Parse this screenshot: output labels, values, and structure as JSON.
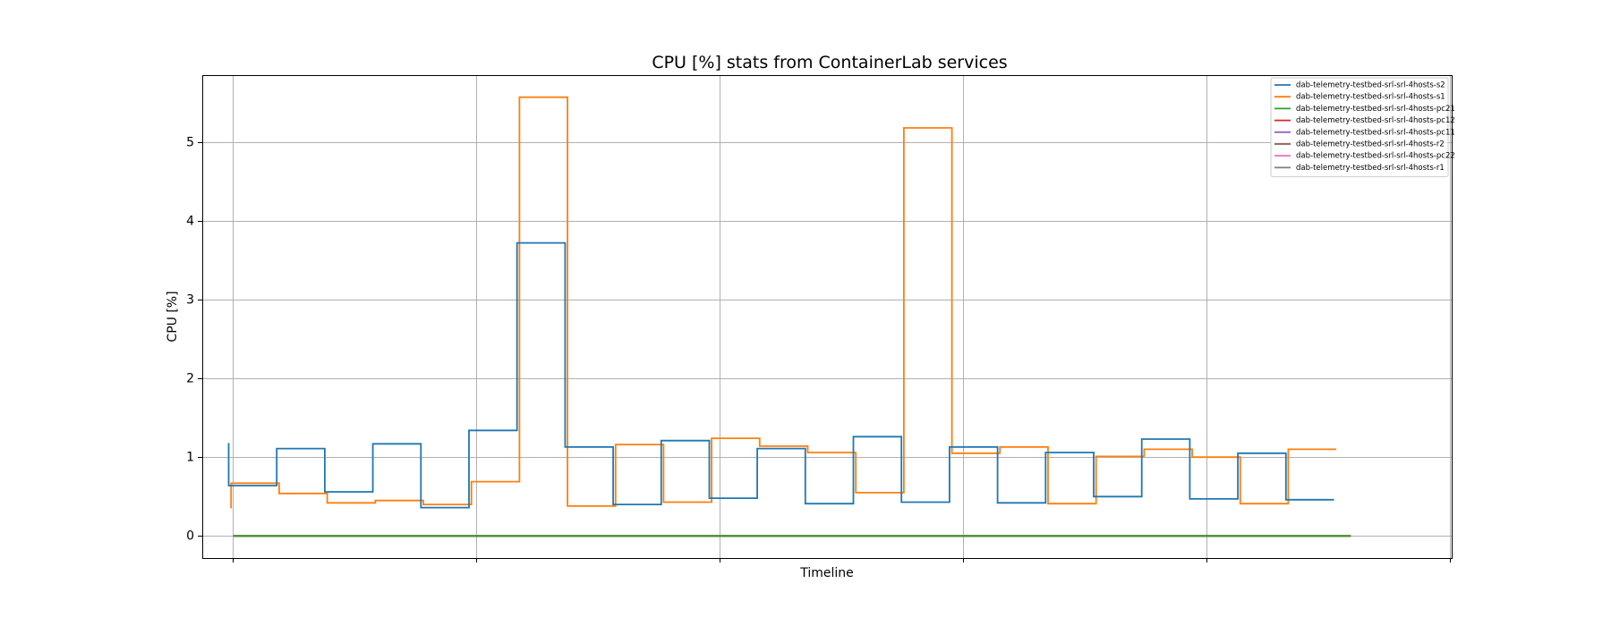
{
  "chart_data": {
    "type": "line",
    "drawstyle": "steps-post",
    "title": "CPU [%] stats from ContainerLab services",
    "xlabel": "Timeline",
    "ylabel": "CPU [%]",
    "ylim": [
      -0.28,
      5.85
    ],
    "yticks": [
      0,
      1,
      2,
      3,
      4,
      5
    ],
    "xlim": [
      0,
      26
    ],
    "x_ticklabels_shown": false,
    "grid": true,
    "legend_position": "upper-right",
    "series": [
      {
        "name": "dab-telemetry-testbed-srl-srl-4hosts-s2",
        "color": "#1f77b4",
        "points": [
          [
            0.55,
            1.18
          ],
          [
            0.55,
            0.64
          ],
          [
            1.55,
            1.11
          ],
          [
            2.55,
            0.56
          ],
          [
            3.55,
            1.17
          ],
          [
            4.55,
            0.36
          ],
          [
            5.55,
            1.34
          ],
          [
            6.55,
            3.72
          ],
          [
            7.55,
            1.13
          ],
          [
            8.55,
            0.4
          ],
          [
            9.55,
            1.21
          ],
          [
            10.55,
            0.48
          ],
          [
            11.55,
            1.11
          ],
          [
            12.55,
            0.41
          ],
          [
            13.55,
            1.26
          ],
          [
            14.55,
            0.43
          ],
          [
            15.55,
            1.13
          ],
          [
            16.55,
            0.42
          ],
          [
            17.55,
            1.06
          ],
          [
            18.55,
            0.5
          ],
          [
            19.55,
            1.23
          ],
          [
            20.55,
            0.47
          ],
          [
            21.55,
            1.05
          ],
          [
            22.55,
            0.46
          ],
          [
            23.55,
            0.46
          ]
        ]
      },
      {
        "name": "dab-telemetry-testbed-srl-srl-4hosts-s1",
        "color": "#ff7f0e",
        "points": [
          [
            0.6,
            0.35
          ],
          [
            0.6,
            0.67
          ],
          [
            1.6,
            0.54
          ],
          [
            2.6,
            0.42
          ],
          [
            3.6,
            0.45
          ],
          [
            4.6,
            0.4
          ],
          [
            5.6,
            0.69
          ],
          [
            6.6,
            5.57
          ],
          [
            7.6,
            0.38
          ],
          [
            8.6,
            1.16
          ],
          [
            9.6,
            0.43
          ],
          [
            10.6,
            1.24
          ],
          [
            11.6,
            1.14
          ],
          [
            12.6,
            1.06
          ],
          [
            13.6,
            0.55
          ],
          [
            14.6,
            5.18
          ],
          [
            15.6,
            1.05
          ],
          [
            16.6,
            1.13
          ],
          [
            17.6,
            0.41
          ],
          [
            18.6,
            1.01
          ],
          [
            19.6,
            1.1
          ],
          [
            20.6,
            1.0
          ],
          [
            21.6,
            0.41
          ],
          [
            22.6,
            1.1
          ],
          [
            23.6,
            1.1
          ]
        ]
      },
      {
        "name": "dab-telemetry-testbed-srl-srl-4hosts-pc21",
        "color": "#2ca02c",
        "points": [
          [
            0.65,
            0
          ],
          [
            23.9,
            0
          ]
        ]
      },
      {
        "name": "dab-telemetry-testbed-srl-srl-4hosts-pc12",
        "color": "#d62728",
        "points": [
          [
            0.65,
            0
          ],
          [
            23.9,
            0
          ]
        ]
      },
      {
        "name": "dab-telemetry-testbed-srl-srl-4hosts-pc11",
        "color": "#9467bd",
        "points": [
          [
            0.65,
            0
          ],
          [
            23.9,
            0
          ]
        ]
      },
      {
        "name": "dab-telemetry-testbed-srl-srl-4hosts-r2",
        "color": "#8c564b",
        "points": [
          [
            0.65,
            0
          ],
          [
            23.9,
            0
          ]
        ]
      },
      {
        "name": "dab-telemetry-testbed-srl-srl-4hosts-pc22",
        "color": "#e377c2",
        "points": [
          [
            0.65,
            0
          ],
          [
            23.9,
            0
          ]
        ]
      },
      {
        "name": "dab-telemetry-testbed-srl-srl-4hosts-r1",
        "color": "#7f7f7f",
        "points": [
          [
            0.65,
            0
          ],
          [
            23.9,
            0
          ]
        ]
      }
    ]
  }
}
